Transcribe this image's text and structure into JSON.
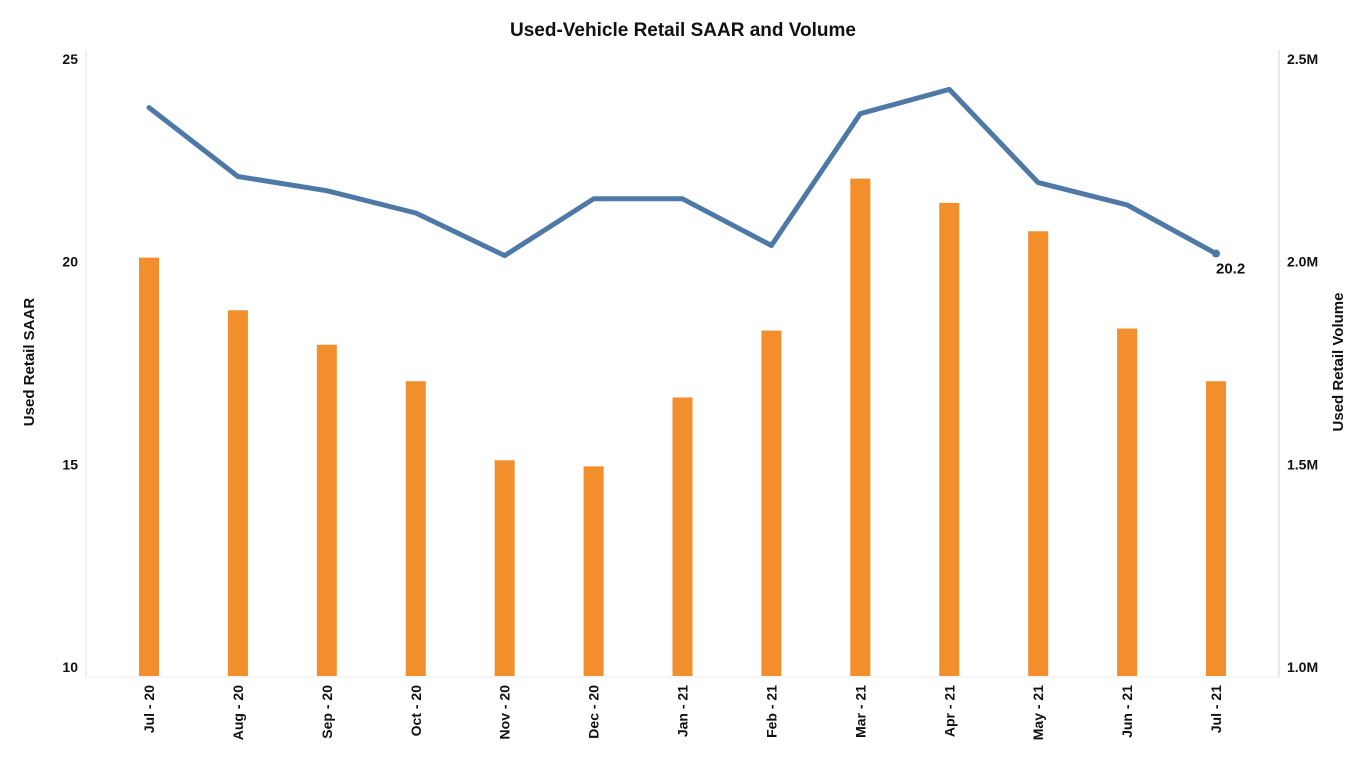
{
  "chart_data": {
    "type": "bar+line",
    "title": "Used-Vehicle Retail SAAR and Volume",
    "categories": [
      "Jul - 20",
      "Aug - 20",
      "Sep - 20",
      "Oct - 20",
      "Nov - 20",
      "Dec - 20",
      "Jan - 21",
      "Feb - 21",
      "Mar - 21",
      "Apr - 21",
      "May - 21",
      "Jun - 21",
      "Jul - 21"
    ],
    "y_left": {
      "label": "Used Retail SAAR",
      "range": [
        10,
        25
      ],
      "ticks": [
        10,
        15,
        20,
        25
      ],
      "tick_labels": [
        "10",
        "15",
        "20",
        "25"
      ]
    },
    "y_right": {
      "label": "Used Retail Volume",
      "range": [
        1000000,
        2500000
      ],
      "ticks": [
        1000000,
        1500000,
        2000000,
        2500000
      ],
      "tick_labels": [
        "1.0M",
        "1.5M",
        "2.0M",
        "2.5M"
      ]
    },
    "series": [
      {
        "name": "Used Retail SAAR",
        "type": "line",
        "axis": "left",
        "color": "#4e79a7",
        "values": [
          23.8,
          22.1,
          21.75,
          21.2,
          20.15,
          21.55,
          21.55,
          20.4,
          23.65,
          24.25,
          21.95,
          21.4,
          20.2
        ]
      },
      {
        "name": "Used Retail Volume",
        "type": "bar",
        "axis": "right",
        "color": "#f28e2b",
        "values": [
          2010000,
          1880000,
          1795000,
          1705000,
          1510000,
          1495000,
          1665000,
          1830000,
          2205000,
          2145000,
          2075000,
          1835000,
          1705000
        ]
      }
    ],
    "annotations": [
      {
        "category": "Jul - 21",
        "series": "Used Retail SAAR",
        "text": "20.2"
      }
    ],
    "grid": false,
    "legend": "none"
  }
}
